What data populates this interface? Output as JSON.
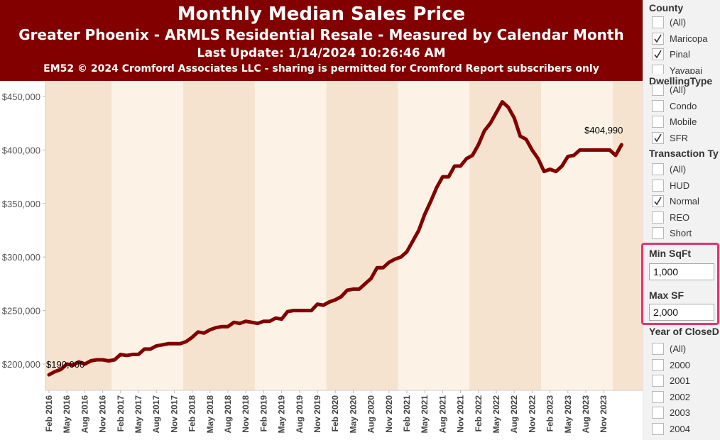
{
  "header": {
    "title": "Monthly Median Sales Price",
    "subtitle": "Greater Phoenix - ARMLS Residential Resale - Measured by Calendar Month",
    "update": "Last Update: 1/14/2024 10:26:46 AM",
    "copyright": "EM52 © 2024 Cromford Associates LLC - sharing is permitted for Cromford Report subscribers only"
  },
  "colors": {
    "header_bg": "#820000",
    "line": "#820000",
    "band_light": "#fdf2e6",
    "band_dark": "#f6e3cf",
    "highlight": "#e8336f"
  },
  "sidebar": {
    "county": {
      "title": "County",
      "items": [
        {
          "label": "(All)",
          "checked": false
        },
        {
          "label": "Maricopa",
          "checked": true
        },
        {
          "label": "Pinal",
          "checked": true
        },
        {
          "label": "Yavapai",
          "checked": false
        }
      ]
    },
    "dwelling": {
      "title": "DwellingType",
      "items": [
        {
          "label": "(All)",
          "checked": false
        },
        {
          "label": "Condo",
          "checked": false
        },
        {
          "label": "Mobile",
          "checked": false
        },
        {
          "label": "SFR",
          "checked": true
        }
      ]
    },
    "transaction": {
      "title": "Transaction Ty",
      "items": [
        {
          "label": "(All)",
          "checked": false
        },
        {
          "label": "HUD",
          "checked": false
        },
        {
          "label": "Normal",
          "checked": true
        },
        {
          "label": "REO",
          "checked": false
        },
        {
          "label": "Short",
          "checked": false
        }
      ]
    },
    "min_sqft": {
      "title": "Min SqFt",
      "value": "1,000"
    },
    "max_sf": {
      "title": "Max SF",
      "value": "2,000"
    },
    "year": {
      "title": "Year of CloseD",
      "items": [
        {
          "label": "(All)",
          "checked": false
        },
        {
          "label": "2000",
          "checked": false
        },
        {
          "label": "2001",
          "checked": false
        },
        {
          "label": "2002",
          "checked": false
        },
        {
          "label": "2003",
          "checked": false
        },
        {
          "label": "2004",
          "checked": false
        }
      ]
    }
  },
  "chart_data": {
    "type": "line",
    "title": "Monthly Median Sales Price",
    "xlabel": "",
    "ylabel": "",
    "ylim": [
      183000,
      455000
    ],
    "y_ticks": [
      "$200,000",
      "$250,000",
      "$300,000",
      "$350,000",
      "$400,000",
      "$450,000"
    ],
    "y_tick_values": [
      200000,
      250000,
      300000,
      350000,
      400000,
      450000
    ],
    "x_ticks": [
      "Feb 2016",
      "May 2016",
      "Aug 2016",
      "Nov 2016",
      "Feb 2017",
      "May 2017",
      "Aug 2017",
      "Nov 2017",
      "Feb 2018",
      "May 2018",
      "Aug 2018",
      "Nov 2018",
      "Feb 2019",
      "May 2019",
      "Aug 2019",
      "Nov 2019",
      "Feb 2020",
      "May 2020",
      "Aug 2020",
      "Nov 2020",
      "Feb 2021",
      "May 2021",
      "Aug 2021",
      "Nov 2021",
      "Feb 2022",
      "May 2022",
      "Aug 2022",
      "Nov 2022",
      "Feb 2023",
      "May 2023",
      "Aug 2023",
      "Nov 2023"
    ],
    "grid": false,
    "legend": "none",
    "first_label": "$190,000",
    "last_label": "$404,990",
    "series": [
      {
        "start": "Feb 2016",
        "interval": "month",
        "values": [
          190000,
          193000,
          195000,
          200000,
          199000,
          202000,
          200000,
          203000,
          204000,
          204000,
          203000,
          204000,
          209000,
          208000,
          209000,
          209000,
          214000,
          214000,
          217000,
          218000,
          219000,
          219000,
          219000,
          221000,
          225000,
          230000,
          229000,
          232000,
          234000,
          235000,
          235000,
          239000,
          238000,
          240000,
          239000,
          238000,
          240000,
          240000,
          243000,
          242000,
          249000,
          250000,
          250000,
          250000,
          250000,
          256000,
          255000,
          258000,
          260000,
          263000,
          269000,
          270000,
          270000,
          275000,
          280000,
          290000,
          290000,
          295000,
          298000,
          300000,
          305000,
          315000,
          325000,
          340000,
          352000,
          365000,
          375000,
          375000,
          385000,
          385000,
          392000,
          395000,
          405000,
          418000,
          425000,
          435000,
          445000,
          440000,
          430000,
          413000,
          410000,
          400000,
          392000,
          380000,
          382000,
          380000,
          385000,
          394000,
          395000,
          400000,
          400000,
          400000,
          400000,
          400000,
          400000,
          395000,
          404990
        ]
      }
    ]
  }
}
